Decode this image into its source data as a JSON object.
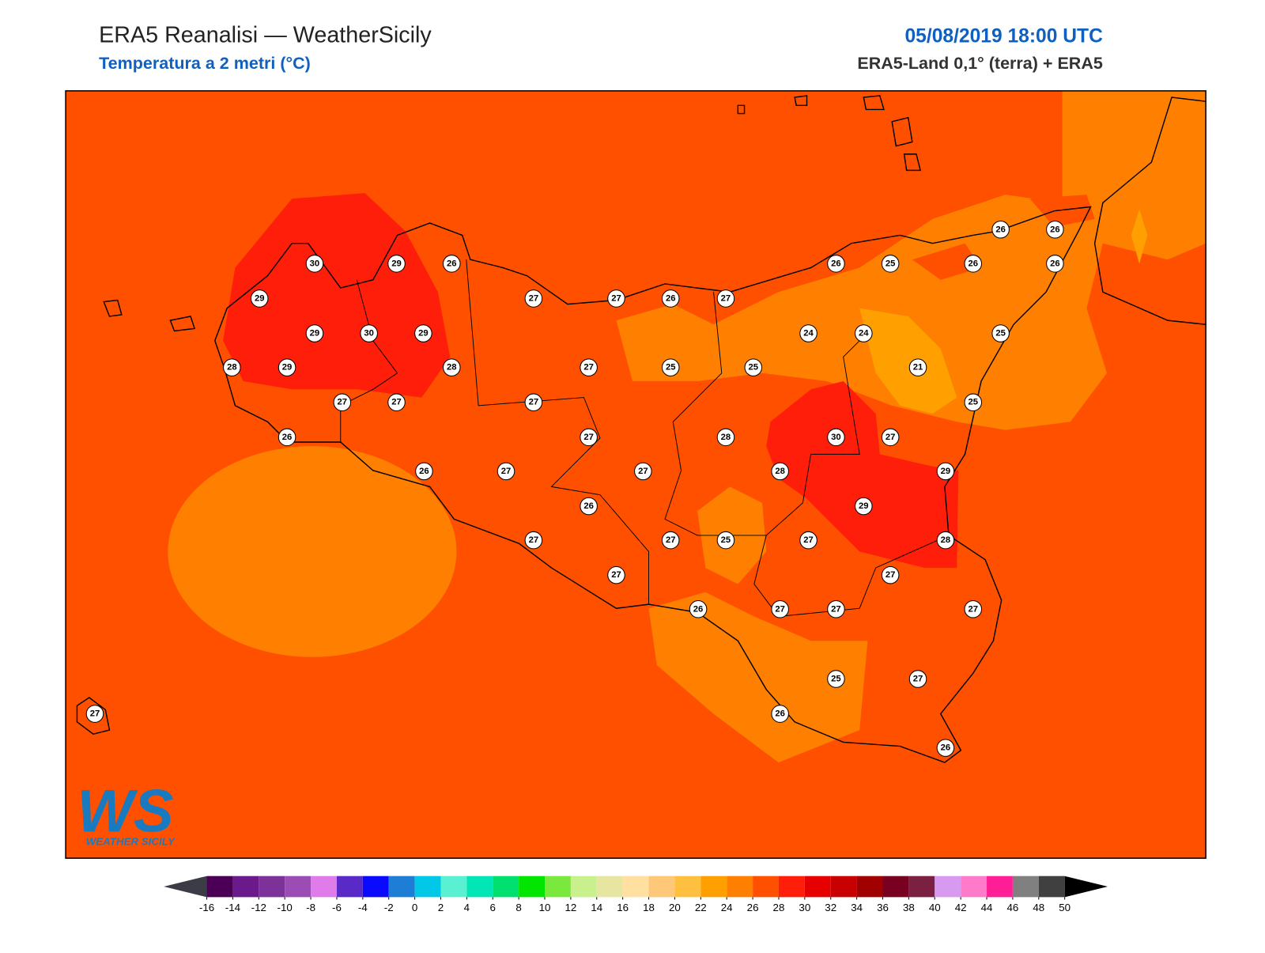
{
  "header": {
    "title": "ERA5 Reanalisi — WeatherSicily",
    "subtitle": "Temperatura a 2 metri (°C)",
    "datetime": "05/08/2019 18:00 UTC",
    "source": "ERA5-Land 0,1° (terra) + ERA5"
  },
  "logo": {
    "mark": "WS",
    "name": "WEATHER SICILY"
  },
  "stations": {
    "values": [
      30,
      29,
      26,
      29,
      29,
      30,
      29,
      28,
      29,
      28,
      27,
      27,
      26,
      26,
      27,
      27,
      27,
      26,
      27,
      27,
      25,
      27,
      27,
      27,
      26,
      27,
      27,
      27,
      25,
      28,
      25,
      24,
      24,
      26,
      25,
      26,
      26,
      26,
      26,
      25,
      21,
      25,
      30,
      27,
      28,
      29,
      29,
      27,
      28,
      27,
      26,
      27,
      27,
      27,
      25,
      27,
      26,
      26,
      27
    ]
  },
  "colorbar": {
    "ticks": [
      -16,
      -14,
      -12,
      -10,
      -8,
      -6,
      -4,
      -2,
      0,
      2,
      4,
      6,
      8,
      10,
      12,
      14,
      16,
      18,
      20,
      22,
      24,
      26,
      28,
      30,
      32,
      34,
      36,
      38,
      40,
      42,
      44,
      46,
      48,
      50
    ],
    "colors": [
      "#4b0055",
      "#6a1a8a",
      "#7d3299",
      "#9b4db5",
      "#e07ce9",
      "#5a2ac9",
      "#0a0aff",
      "#1e7ed6",
      "#00c8e6",
      "#5af0d2",
      "#00e6b4",
      "#00e070",
      "#00e600",
      "#7ae83c",
      "#c8f08c",
      "#e6e6a0",
      "#ffe0a0",
      "#ffc878",
      "#ffc040",
      "#ffa000",
      "#ff8000",
      "#ff5000",
      "#ff1e0a",
      "#e60000",
      "#c80000",
      "#a00000",
      "#780020",
      "#7a2040",
      "#d89af0",
      "#ff7ac8",
      "#ff1e96",
      "#808080",
      "#404040"
    ],
    "under_color": "#3c3c46",
    "over_color": "#000000"
  }
}
